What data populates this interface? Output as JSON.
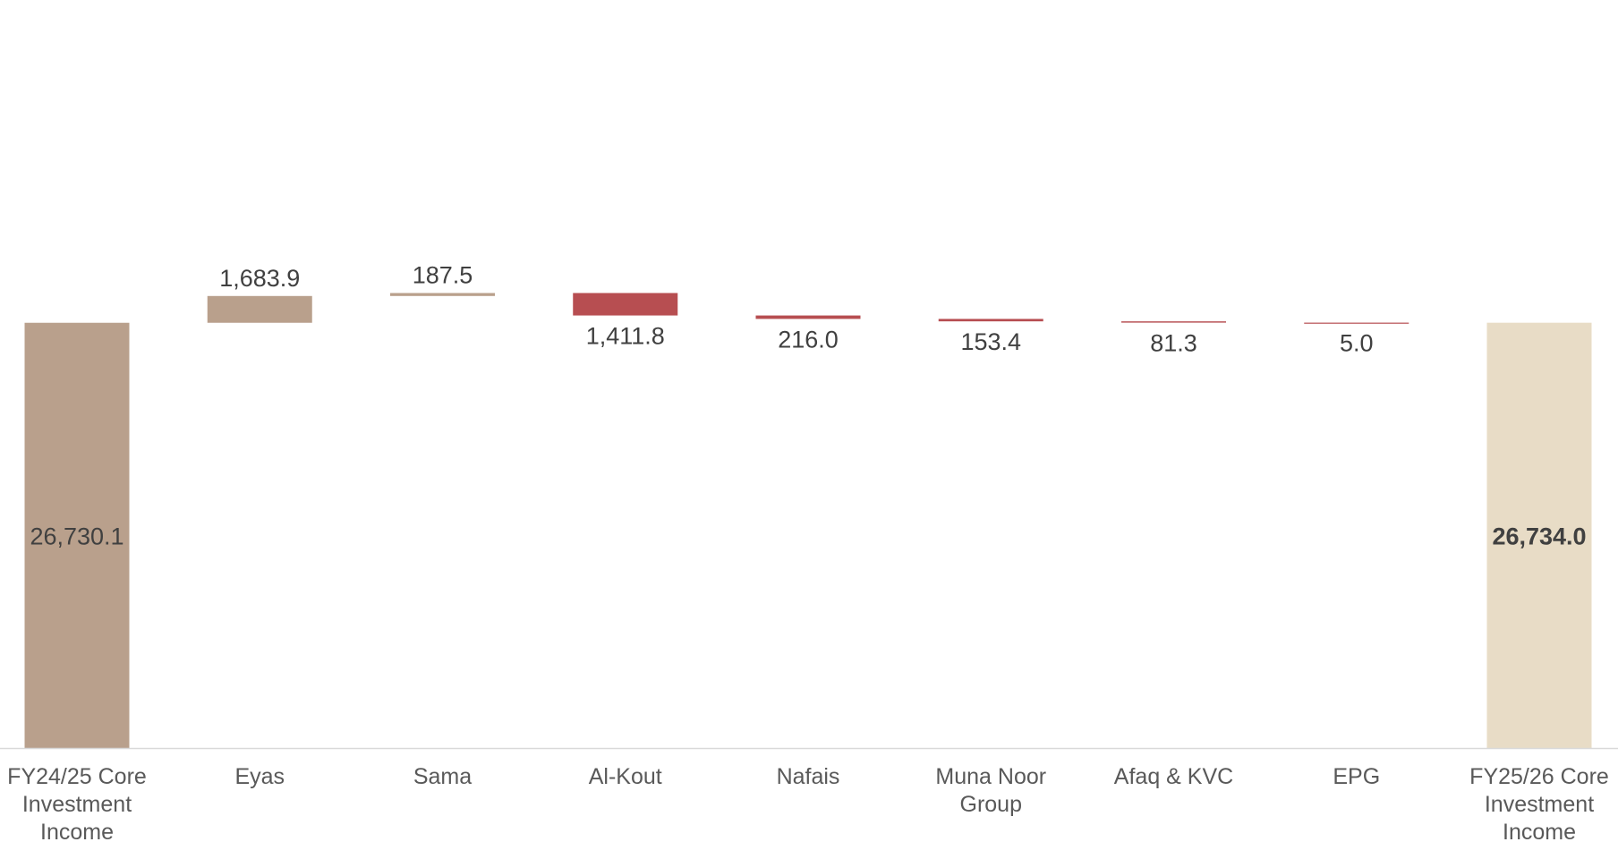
{
  "chart_data": {
    "type": "bar",
    "subtype": "waterfall",
    "title": "",
    "xlabel": "",
    "ylabel": "",
    "ylim": [
      0,
      26730.1
    ],
    "grid": false,
    "legend": "none",
    "colors": {
      "start_total": "#b9a08c",
      "increase": "#b9a08c",
      "decrease": "#b74e51",
      "end_total": "#e8dcc6",
      "axis": "#d9d9d9"
    },
    "categories": [
      [
        "FY24/25 Core",
        "Investment",
        "Income"
      ],
      [
        "Eyas"
      ],
      [
        "Sama"
      ],
      [
        "Al-Kout"
      ],
      [
        "Nafais"
      ],
      [
        "Muna Noor",
        "Group"
      ],
      [
        "Afaq & KVC"
      ],
      [
        "EPG"
      ],
      [
        "FY25/26 Core",
        "Investment",
        "Income"
      ]
    ],
    "steps": [
      {
        "kind": "total",
        "value": 26730.1,
        "label": "26,730.1",
        "bold": false
      },
      {
        "kind": "increase",
        "value": 1683.9,
        "label": "1,683.9"
      },
      {
        "kind": "increase",
        "value": 187.5,
        "label": "187.5"
      },
      {
        "kind": "decrease",
        "value": -1411.8,
        "label": "1,411.8"
      },
      {
        "kind": "decrease",
        "value": -216.0,
        "label": "216.0"
      },
      {
        "kind": "decrease",
        "value": -153.4,
        "label": "153.4"
      },
      {
        "kind": "decrease",
        "value": -81.3,
        "label": "81.3"
      },
      {
        "kind": "decrease",
        "value": -5.0,
        "label": "5.0"
      },
      {
        "kind": "end_total",
        "value": 26734.0,
        "label": "26,734.0",
        "bold": true
      }
    ]
  }
}
